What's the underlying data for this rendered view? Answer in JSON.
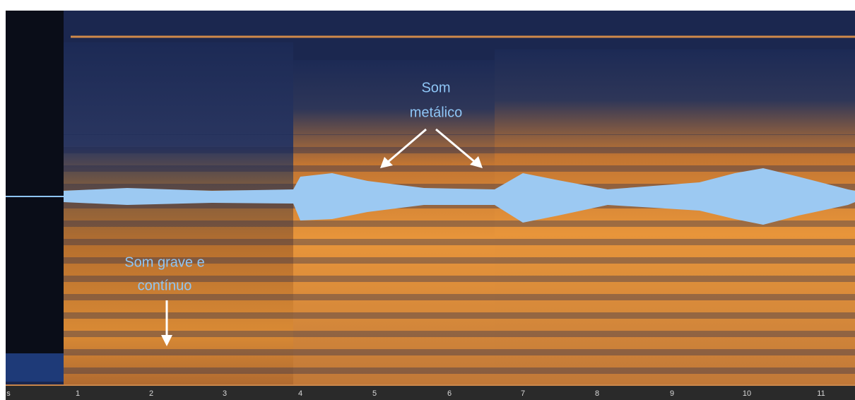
{
  "annotations": {
    "metallic": [
      "Som",
      "metálico"
    ],
    "bass": [
      "Som grave e",
      "contínuo"
    ]
  },
  "axis": {
    "labels": [
      "s",
      "1",
      "2",
      "3",
      "4",
      "5",
      "6",
      "7",
      "8",
      "9",
      "10",
      "11"
    ]
  }
}
